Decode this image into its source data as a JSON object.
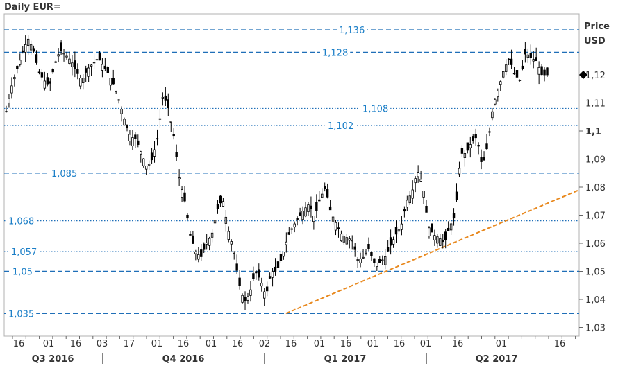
{
  "chart_data": {
    "type": "candlestick",
    "title": "Daily EUR=",
    "ylabel": [
      "Price",
      "USD"
    ],
    "ylim": [
      1.03,
      1.14
    ],
    "y_ticks": [
      {
        "v": 1.03,
        "label": "1,03"
      },
      {
        "v": 1.04,
        "label": "1,04"
      },
      {
        "v": 1.05,
        "label": "1,05"
      },
      {
        "v": 1.06,
        "label": "1,06"
      },
      {
        "v": 1.07,
        "label": "1,07"
      },
      {
        "v": 1.08,
        "label": "1,08"
      },
      {
        "v": 1.09,
        "label": "1,09"
      },
      {
        "v": 1.1,
        "label": "1,1",
        "bold": true
      },
      {
        "v": 1.11,
        "label": "1,11"
      },
      {
        "v": 1.12,
        "label": "1,12"
      }
    ],
    "last_price": 1.12,
    "x_tick_labels": [
      "16",
      "01",
      "16",
      "03",
      "17",
      "01",
      "16",
      "01",
      "16",
      "02",
      "16",
      "01",
      "16",
      "01",
      "16",
      "01",
      "16",
      "01",
      "16"
    ],
    "quarter_labels": [
      "Q3 2016",
      "Q4 2016",
      "Q1 2017",
      "Q2 2017"
    ],
    "levels": [
      {
        "value": 1.136,
        "label": "1,136",
        "style": "dashed"
      },
      {
        "value": 1.128,
        "label": "1,128",
        "style": "dashed"
      },
      {
        "value": 1.108,
        "label": "1,108",
        "style": "dotted"
      },
      {
        "value": 1.102,
        "label": "1,102",
        "style": "dotted"
      },
      {
        "value": 1.085,
        "label": "1,085",
        "style": "dashed"
      },
      {
        "value": 1.068,
        "label": "1,068",
        "style": "dotted"
      },
      {
        "value": 1.057,
        "label": "1,057",
        "style": "dotted"
      },
      {
        "value": 1.05,
        "label": "1,05",
        "style": "dashed"
      },
      {
        "value": 1.035,
        "label": "1,035",
        "style": "dashed"
      }
    ],
    "trendline": {
      "from": [
        0.49,
        1.035
      ],
      "to": [
        1.0,
        1.079
      ],
      "color": "#e8891f"
    },
    "close_path": [
      [
        0.0,
        1.107
      ],
      [
        0.01,
        1.116
      ],
      [
        0.02,
        1.122
      ],
      [
        0.03,
        1.128
      ],
      [
        0.04,
        1.133
      ],
      [
        0.05,
        1.129
      ],
      [
        0.06,
        1.121
      ],
      [
        0.07,
        1.118
      ],
      [
        0.08,
        1.116
      ],
      [
        0.09,
        1.124
      ],
      [
        0.1,
        1.129
      ],
      [
        0.11,
        1.127
      ],
      [
        0.12,
        1.125
      ],
      [
        0.13,
        1.121
      ],
      [
        0.14,
        1.118
      ],
      [
        0.15,
        1.122
      ],
      [
        0.16,
        1.124
      ],
      [
        0.17,
        1.126
      ],
      [
        0.18,
        1.123
      ],
      [
        0.19,
        1.12
      ],
      [
        0.2,
        1.116
      ],
      [
        0.21,
        1.11
      ],
      [
        0.22,
        1.103
      ],
      [
        0.23,
        1.098
      ],
      [
        0.24,
        1.097
      ],
      [
        0.25,
        1.092
      ],
      [
        0.26,
        1.087
      ],
      [
        0.27,
        1.09
      ],
      [
        0.28,
        1.098
      ],
      [
        0.29,
        1.113
      ],
      [
        0.3,
        1.108
      ],
      [
        0.31,
        1.098
      ],
      [
        0.32,
        1.083
      ],
      [
        0.33,
        1.075
      ],
      [
        0.34,
        1.063
      ],
      [
        0.35,
        1.057
      ],
      [
        0.36,
        1.055
      ],
      [
        0.37,
        1.06
      ],
      [
        0.38,
        1.063
      ],
      [
        0.39,
        1.072
      ],
      [
        0.4,
        1.076
      ],
      [
        0.41,
        1.065
      ],
      [
        0.42,
        1.058
      ],
      [
        0.43,
        1.046
      ],
      [
        0.44,
        1.039
      ],
      [
        0.45,
        1.042
      ],
      [
        0.46,
        1.05
      ],
      [
        0.47,
        1.047
      ],
      [
        0.48,
        1.041
      ],
      [
        0.49,
        1.05
      ],
      [
        0.5,
        1.05
      ],
      [
        0.51,
        1.055
      ],
      [
        0.52,
        1.062
      ],
      [
        0.53,
        1.066
      ],
      [
        0.54,
        1.069
      ],
      [
        0.55,
        1.072
      ],
      [
        0.56,
        1.074
      ],
      [
        0.57,
        1.069
      ],
      [
        0.58,
        1.076
      ],
      [
        0.59,
        1.08
      ],
      [
        0.6,
        1.071
      ],
      [
        0.61,
        1.067
      ],
      [
        0.62,
        1.063
      ],
      [
        0.63,
        1.062
      ],
      [
        0.64,
        1.061
      ],
      [
        0.65,
        1.054
      ],
      [
        0.66,
        1.055
      ],
      [
        0.67,
        1.058
      ],
      [
        0.68,
        1.053
      ],
      [
        0.69,
        1.053
      ],
      [
        0.7,
        1.055
      ],
      [
        0.71,
        1.059
      ],
      [
        0.72,
        1.063
      ],
      [
        0.73,
        1.066
      ],
      [
        0.74,
        1.075
      ],
      [
        0.75,
        1.078
      ],
      [
        0.76,
        1.086
      ],
      [
        0.77,
        1.081
      ],
      [
        0.78,
        1.066
      ],
      [
        0.79,
        1.063
      ],
      [
        0.8,
        1.062
      ],
      [
        0.81,
        1.06
      ],
      [
        0.82,
        1.066
      ],
      [
        0.83,
        1.07
      ],
      [
        0.84,
        1.092
      ],
      [
        0.85,
        1.092
      ],
      [
        0.86,
        1.096
      ],
      [
        0.87,
        1.098
      ],
      [
        0.88,
        1.087
      ],
      [
        0.89,
        1.095
      ],
      [
        0.9,
        1.109
      ],
      [
        0.91,
        1.115
      ],
      [
        0.92,
        1.122
      ],
      [
        0.93,
        1.126
      ],
      [
        0.94,
        1.12
      ],
      [
        0.95,
        1.118
      ],
      [
        0.96,
        1.128
      ],
      [
        0.97,
        1.126
      ],
      [
        0.98,
        1.125
      ],
      [
        0.99,
        1.12
      ],
      [
        1.0,
        1.12
      ]
    ]
  }
}
